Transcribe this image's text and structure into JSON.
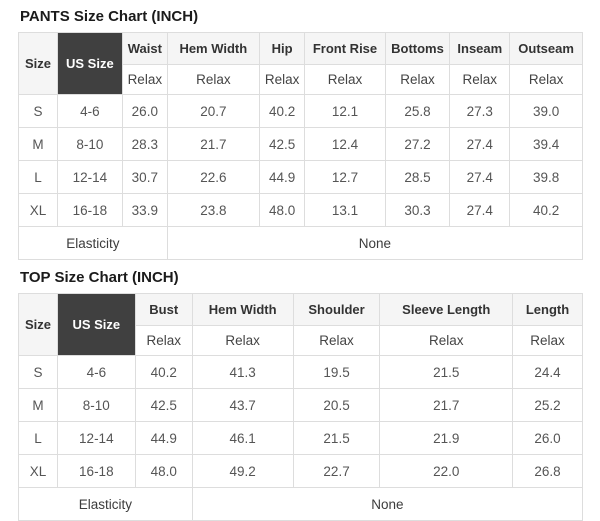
{
  "colors": {
    "border": "#dddddd",
    "header_bg": "#f5f5f5",
    "us_size_bg": "#404040",
    "us_size_text": "#ffffff",
    "title_text": "#1b1b1b",
    "header_text": "#333333",
    "cell_text": "#555555"
  },
  "charts": [
    {
      "title": "PANTS Size Chart (INCH)",
      "size_header": "Size",
      "us_size_header": "US Size",
      "fit_label": "Relax",
      "measure_columns": [
        "Waist",
        "Hem Width",
        "Hip",
        "Front Rise",
        "Bottoms",
        "Inseam",
        "Outseam"
      ],
      "col_widths": [
        "6.9%",
        "11.5%",
        "8.0%",
        "16.3%",
        "8.1%",
        "14.2%",
        "11.5%",
        "10.6%",
        "12.9%"
      ],
      "rows": [
        {
          "size": "S",
          "us_size": "4-6",
          "values": [
            "26.0",
            "20.7",
            "40.2",
            "12.1",
            "25.8",
            "27.3",
            "39.0"
          ]
        },
        {
          "size": "M",
          "us_size": "8-10",
          "values": [
            "28.3",
            "21.7",
            "42.5",
            "12.4",
            "27.2",
            "27.4",
            "39.4"
          ]
        },
        {
          "size": "L",
          "us_size": "12-14",
          "values": [
            "30.7",
            "22.6",
            "44.9",
            "12.7",
            "28.5",
            "27.4",
            "39.8"
          ]
        },
        {
          "size": "XL",
          "us_size": "16-18",
          "values": [
            "33.9",
            "23.8",
            "48.0",
            "13.1",
            "30.3",
            "27.4",
            "40.2"
          ]
        }
      ],
      "footer": {
        "label": "Elasticity",
        "value": "None",
        "label_colspan": 3
      }
    },
    {
      "title": "TOP Size Chart (INCH)",
      "size_header": "Size",
      "us_size_header": "US Size",
      "fit_label": "Relax",
      "measure_columns": [
        "Bust",
        "Hem Width",
        "Shoulder",
        "Sleeve Length",
        "Length"
      ],
      "col_widths": [
        "6.9%",
        "13.8%",
        "10.1%",
        "17.9%",
        "15.4%",
        "23.5%",
        "12.4%"
      ],
      "rows": [
        {
          "size": "S",
          "us_size": "4-6",
          "values": [
            "40.2",
            "41.3",
            "19.5",
            "21.5",
            "24.4"
          ]
        },
        {
          "size": "M",
          "us_size": "8-10",
          "values": [
            "42.5",
            "43.7",
            "20.5",
            "21.7",
            "25.2"
          ]
        },
        {
          "size": "L",
          "us_size": "12-14",
          "values": [
            "44.9",
            "46.1",
            "21.5",
            "21.9",
            "26.0"
          ]
        },
        {
          "size": "XL",
          "us_size": "16-18",
          "values": [
            "48.0",
            "49.2",
            "22.7",
            "22.0",
            "26.8"
          ]
        }
      ],
      "footer": {
        "label": "Elasticity",
        "value": "None",
        "label_colspan": 3
      }
    }
  ]
}
